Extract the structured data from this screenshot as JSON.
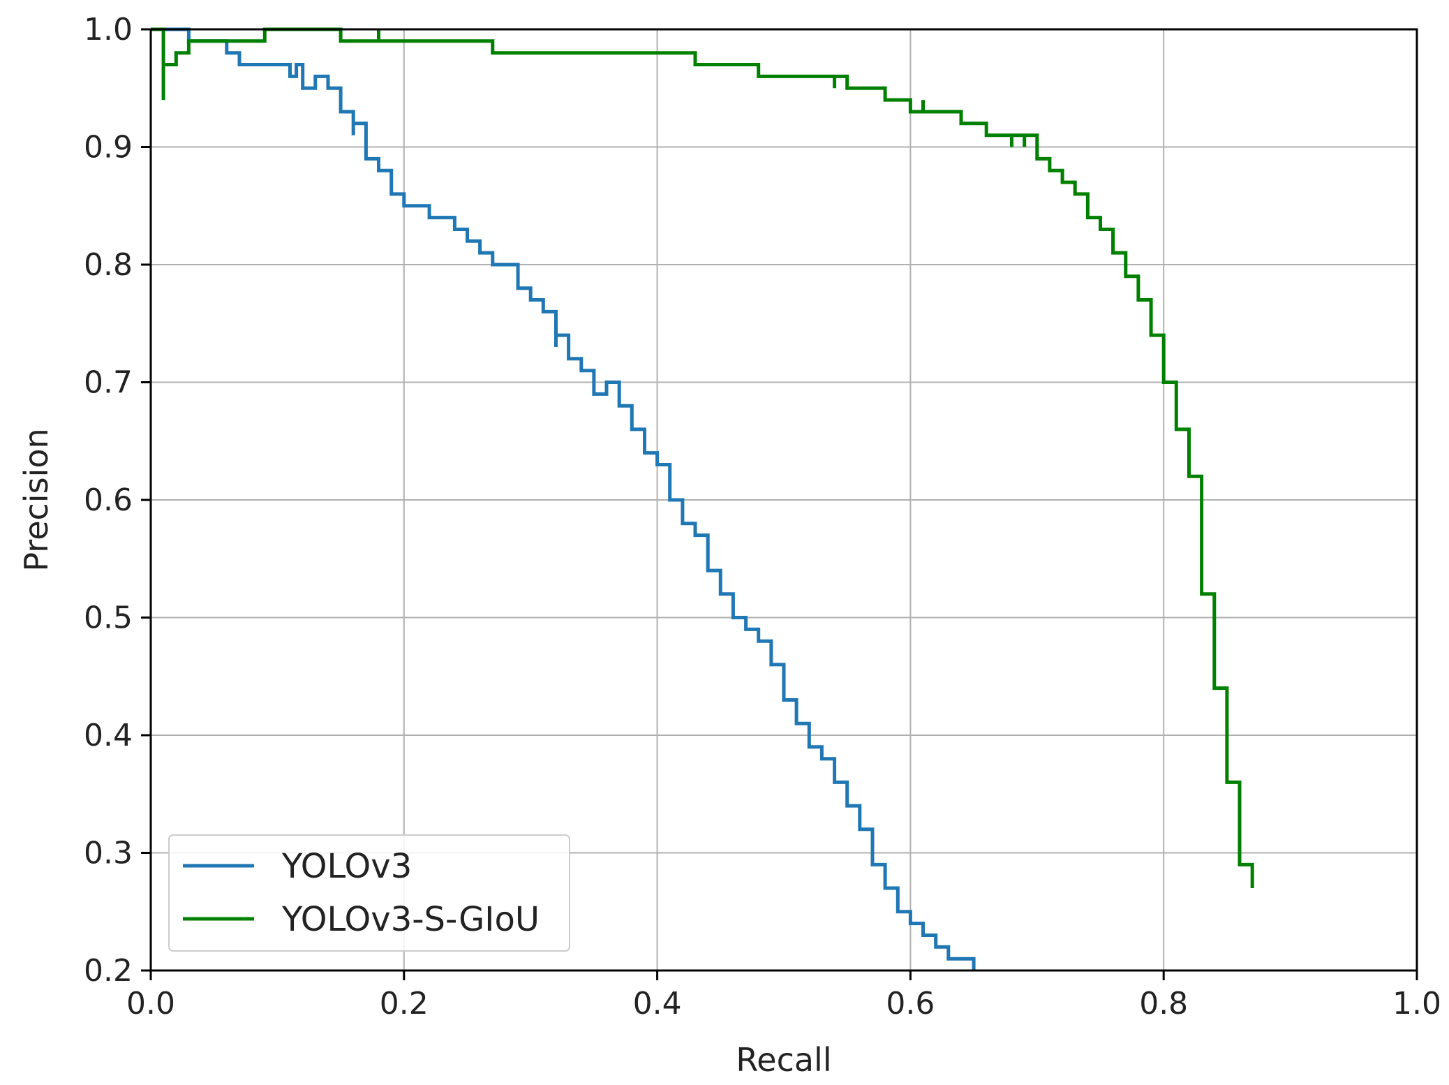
{
  "chart_data": {
    "type": "line",
    "title": "",
    "xlabel": "Recall",
    "ylabel": "Precision",
    "xlim": [
      0.0,
      1.0
    ],
    "ylim": [
      0.2,
      1.0
    ],
    "xticks": [
      0.0,
      0.2,
      0.4,
      0.6,
      0.8,
      1.0
    ],
    "xtick_labels": [
      "0.0",
      "0.2",
      "0.4",
      "0.6",
      "0.8",
      "1.0"
    ],
    "yticks": [
      0.2,
      0.3,
      0.4,
      0.5,
      0.6,
      0.7,
      0.8,
      0.9,
      1.0
    ],
    "ytick_labels": [
      "0.2",
      "0.3",
      "0.4",
      "0.5",
      "0.6",
      "0.7",
      "0.8",
      "0.9",
      "1.0"
    ],
    "grid": true,
    "legend_position": "lower-left",
    "series": [
      {
        "name": "YOLOv3",
        "color": "#1f77b4",
        "style": "step",
        "x": [
          0.0,
          0.01,
          0.03,
          0.03,
          0.06,
          0.07,
          0.11,
          0.11,
          0.115,
          0.12,
          0.12,
          0.13,
          0.14,
          0.15,
          0.16,
          0.16,
          0.17,
          0.18,
          0.19,
          0.2,
          0.22,
          0.24,
          0.25,
          0.26,
          0.27,
          0.29,
          0.3,
          0.31,
          0.32,
          0.32,
          0.33,
          0.34,
          0.35,
          0.36,
          0.36,
          0.37,
          0.38,
          0.39,
          0.4,
          0.41,
          0.42,
          0.43,
          0.44,
          0.45,
          0.46,
          0.47,
          0.48,
          0.49,
          0.5,
          0.51,
          0.52,
          0.53,
          0.54,
          0.55,
          0.56,
          0.57,
          0.58,
          0.59,
          0.6,
          0.61,
          0.62,
          0.63,
          0.65
        ],
        "y": [
          1.0,
          1.0,
          1.0,
          0.99,
          0.98,
          0.97,
          0.97,
          0.96,
          0.97,
          0.97,
          0.95,
          0.96,
          0.95,
          0.93,
          0.91,
          0.92,
          0.89,
          0.88,
          0.86,
          0.85,
          0.84,
          0.83,
          0.82,
          0.81,
          0.8,
          0.78,
          0.77,
          0.76,
          0.73,
          0.74,
          0.72,
          0.71,
          0.69,
          0.69,
          0.7,
          0.68,
          0.66,
          0.64,
          0.63,
          0.6,
          0.58,
          0.57,
          0.54,
          0.52,
          0.5,
          0.49,
          0.48,
          0.46,
          0.43,
          0.41,
          0.39,
          0.38,
          0.36,
          0.34,
          0.32,
          0.29,
          0.27,
          0.25,
          0.24,
          0.23,
          0.22,
          0.21,
          0.2
        ]
      },
      {
        "name": "YOLOv3-S-GIoU",
        "color": "#008000",
        "style": "step",
        "x": [
          0.0,
          0.01,
          0.01,
          0.01,
          0.02,
          0.03,
          0.03,
          0.09,
          0.15,
          0.18,
          0.18,
          0.27,
          0.43,
          0.48,
          0.54,
          0.54,
          0.55,
          0.58,
          0.6,
          0.61,
          0.61,
          0.64,
          0.66,
          0.68,
          0.68,
          0.69,
          0.69,
          0.7,
          0.71,
          0.72,
          0.73,
          0.74,
          0.75,
          0.76,
          0.77,
          0.78,
          0.79,
          0.8,
          0.81,
          0.82,
          0.83,
          0.84,
          0.85,
          0.86,
          0.87,
          0.87
        ],
        "y": [
          1.0,
          1.0,
          0.94,
          0.97,
          0.98,
          0.99,
          0.99,
          1.0,
          0.99,
          1.0,
          0.99,
          0.98,
          0.97,
          0.96,
          0.95,
          0.96,
          0.95,
          0.94,
          0.93,
          0.94,
          0.93,
          0.92,
          0.91,
          0.9,
          0.91,
          0.9,
          0.91,
          0.89,
          0.88,
          0.87,
          0.86,
          0.84,
          0.83,
          0.81,
          0.79,
          0.77,
          0.74,
          0.7,
          0.66,
          0.62,
          0.52,
          0.44,
          0.36,
          0.29,
          0.29,
          0.27
        ]
      }
    ]
  }
}
